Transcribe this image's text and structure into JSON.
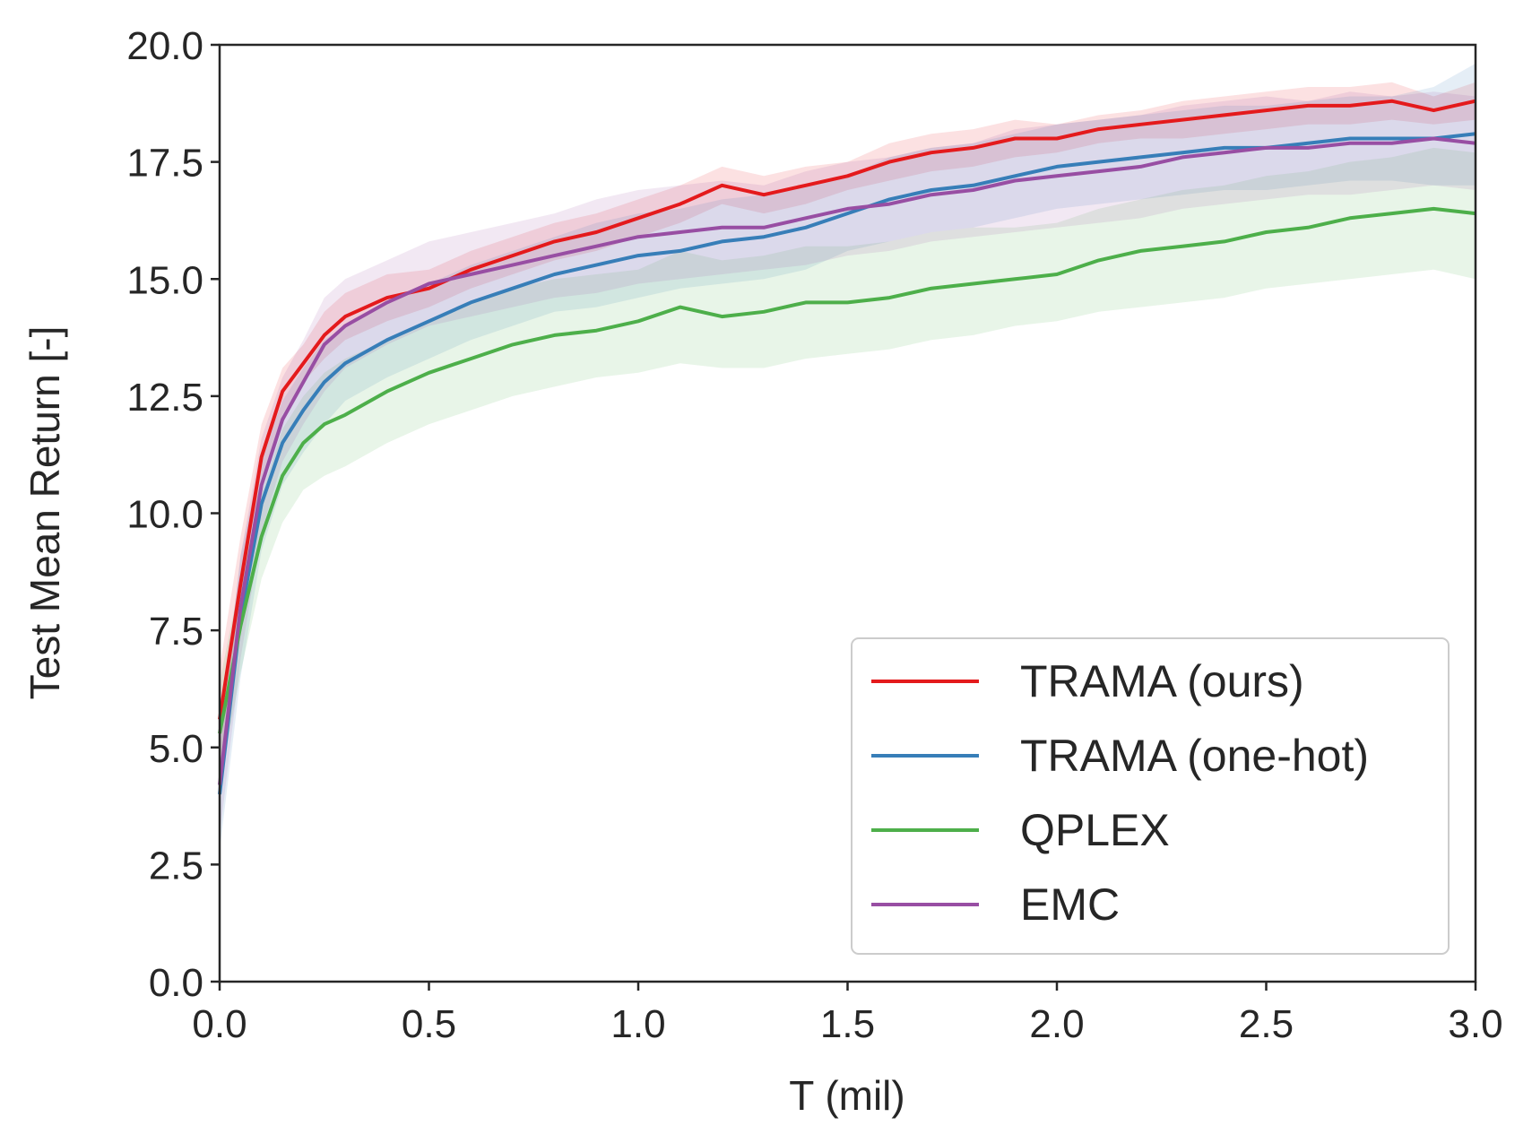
{
  "chart_data": {
    "type": "line",
    "title": "",
    "xlabel": "T (mil)",
    "ylabel": "Test Mean Return [-]",
    "xlim": [
      0,
      3.0
    ],
    "ylim": [
      0,
      20.0
    ],
    "xticks": [
      "0.0",
      "0.5",
      "1.0",
      "1.5",
      "2.0",
      "2.5",
      "3.0"
    ],
    "yticks": [
      "0.0",
      "2.5",
      "5.0",
      "7.5",
      "10.0",
      "12.5",
      "15.0",
      "17.5",
      "20.0"
    ],
    "grid": false,
    "legend_position": "lower-right",
    "series": [
      {
        "name": "TRAMA (ours)",
        "color": "#e41a1c",
        "x": [
          0,
          0.05,
          0.1,
          0.15,
          0.2,
          0.25,
          0.3,
          0.4,
          0.5,
          0.6,
          0.7,
          0.8,
          0.9,
          1.0,
          1.1,
          1.2,
          1.3,
          1.4,
          1.5,
          1.6,
          1.7,
          1.8,
          1.9,
          2.0,
          2.1,
          2.2,
          2.3,
          2.4,
          2.5,
          2.6,
          2.7,
          2.8,
          2.9,
          3.0
        ],
        "values": [
          5.6,
          8.5,
          11.2,
          12.6,
          13.2,
          13.8,
          14.2,
          14.6,
          14.8,
          15.2,
          15.5,
          15.8,
          16.0,
          16.3,
          16.6,
          17.0,
          16.8,
          17.0,
          17.2,
          17.5,
          17.7,
          17.8,
          18.0,
          18.0,
          18.2,
          18.3,
          18.4,
          18.5,
          18.6,
          18.7,
          18.7,
          18.8,
          18.6,
          18.8
        ],
        "band_low": [
          4.5,
          7.5,
          10.5,
          12.1,
          12.8,
          13.3,
          13.7,
          14.1,
          14.4,
          14.8,
          15.1,
          15.4,
          15.6,
          15.9,
          16.2,
          16.6,
          16.4,
          16.6,
          16.9,
          17.1,
          17.3,
          17.4,
          17.6,
          17.7,
          17.9,
          18.0,
          18.0,
          18.1,
          18.2,
          18.3,
          18.3,
          18.4,
          18.3,
          18.4
        ],
        "band_high": [
          6.7,
          9.5,
          11.9,
          13.1,
          13.6,
          14.3,
          14.7,
          15.1,
          15.2,
          15.6,
          15.9,
          16.2,
          16.4,
          16.7,
          17.0,
          17.4,
          17.2,
          17.4,
          17.5,
          17.9,
          18.1,
          18.2,
          18.4,
          18.3,
          18.5,
          18.6,
          18.8,
          18.9,
          19.0,
          19.1,
          19.1,
          19.2,
          18.9,
          19.2
        ]
      },
      {
        "name": "TRAMA (one-hot)",
        "color": "#377eb8",
        "x": [
          0,
          0.05,
          0.1,
          0.15,
          0.2,
          0.25,
          0.3,
          0.4,
          0.5,
          0.6,
          0.7,
          0.8,
          0.9,
          1.0,
          1.1,
          1.2,
          1.3,
          1.4,
          1.5,
          1.6,
          1.7,
          1.8,
          1.9,
          2.0,
          2.1,
          2.2,
          2.3,
          2.4,
          2.5,
          2.6,
          2.7,
          2.8,
          2.9,
          3.0
        ],
        "values": [
          4.0,
          7.8,
          10.2,
          11.5,
          12.2,
          12.8,
          13.2,
          13.7,
          14.1,
          14.5,
          14.8,
          15.1,
          15.3,
          15.5,
          15.6,
          15.8,
          15.9,
          16.1,
          16.4,
          16.7,
          16.9,
          17.0,
          17.2,
          17.4,
          17.5,
          17.6,
          17.7,
          17.8,
          17.8,
          17.9,
          18.0,
          18.0,
          18.0,
          18.1
        ],
        "band_low": [
          2.8,
          6.5,
          9.2,
          10.6,
          11.3,
          11.9,
          12.4,
          12.9,
          13.3,
          13.7,
          14.0,
          14.3,
          14.4,
          14.6,
          14.8,
          14.9,
          15.0,
          15.2,
          15.6,
          15.8,
          16.0,
          16.1,
          16.3,
          16.5,
          16.6,
          16.7,
          16.8,
          16.9,
          16.9,
          17.0,
          17.1,
          17.1,
          17.0,
          17.0
        ],
        "band_high": [
          5.2,
          9.1,
          11.2,
          12.4,
          13.1,
          13.7,
          14.0,
          14.5,
          14.9,
          15.3,
          15.6,
          15.9,
          16.2,
          16.4,
          16.5,
          16.7,
          16.8,
          17.0,
          17.2,
          17.6,
          17.8,
          17.9,
          18.1,
          18.3,
          18.4,
          18.5,
          18.6,
          18.7,
          18.7,
          18.8,
          18.9,
          18.9,
          19.1,
          19.6
        ]
      },
      {
        "name": "QPLEX",
        "color": "#4daf4a",
        "x": [
          0,
          0.05,
          0.1,
          0.15,
          0.2,
          0.25,
          0.3,
          0.4,
          0.5,
          0.6,
          0.7,
          0.8,
          0.9,
          1.0,
          1.1,
          1.2,
          1.3,
          1.4,
          1.5,
          1.6,
          1.7,
          1.8,
          1.9,
          2.0,
          2.1,
          2.2,
          2.3,
          2.4,
          2.5,
          2.6,
          2.7,
          2.8,
          2.9,
          3.0
        ],
        "values": [
          5.3,
          7.6,
          9.5,
          10.8,
          11.5,
          11.9,
          12.1,
          12.6,
          13.0,
          13.3,
          13.6,
          13.8,
          13.9,
          14.1,
          14.4,
          14.2,
          14.3,
          14.5,
          14.5,
          14.6,
          14.8,
          14.9,
          15.0,
          15.1,
          15.4,
          15.6,
          15.7,
          15.8,
          16.0,
          16.1,
          16.3,
          16.4,
          16.5,
          16.4
        ],
        "band_low": [
          4.2,
          6.6,
          8.6,
          9.8,
          10.5,
          10.8,
          11.0,
          11.5,
          11.9,
          12.2,
          12.5,
          12.7,
          12.9,
          13.0,
          13.2,
          13.1,
          13.1,
          13.3,
          13.4,
          13.5,
          13.7,
          13.8,
          14.0,
          14.1,
          14.3,
          14.4,
          14.5,
          14.6,
          14.8,
          14.9,
          15.0,
          15.1,
          15.2,
          15.0
        ],
        "band_high": [
          6.4,
          8.6,
          10.4,
          11.8,
          12.5,
          13.0,
          13.3,
          13.7,
          14.1,
          14.5,
          14.8,
          15.0,
          15.1,
          15.2,
          15.6,
          15.4,
          15.5,
          15.7,
          15.7,
          15.8,
          16.0,
          16.1,
          16.1,
          16.2,
          16.5,
          16.7,
          16.9,
          17.0,
          17.2,
          17.3,
          17.5,
          17.6,
          17.8,
          17.7
        ]
      },
      {
        "name": "EMC",
        "color": "#984ea3",
        "x": [
          0,
          0.05,
          0.1,
          0.15,
          0.2,
          0.25,
          0.3,
          0.4,
          0.5,
          0.6,
          0.7,
          0.8,
          0.9,
          1.0,
          1.1,
          1.2,
          1.3,
          1.4,
          1.5,
          1.6,
          1.7,
          1.8,
          1.9,
          2.0,
          2.1,
          2.2,
          2.3,
          2.4,
          2.5,
          2.6,
          2.7,
          2.8,
          2.9,
          3.0
        ],
        "values": [
          4.2,
          8.0,
          10.6,
          12.0,
          12.8,
          13.6,
          14.0,
          14.5,
          14.9,
          15.1,
          15.3,
          15.5,
          15.7,
          15.9,
          16.0,
          16.1,
          16.1,
          16.3,
          16.5,
          16.6,
          16.8,
          16.9,
          17.1,
          17.2,
          17.3,
          17.4,
          17.6,
          17.7,
          17.8,
          17.8,
          17.9,
          17.9,
          18.0,
          17.9
        ],
        "band_low": [
          3.1,
          6.9,
          9.6,
          11.1,
          11.9,
          12.6,
          13.1,
          13.6,
          14.0,
          14.2,
          14.4,
          14.6,
          14.7,
          14.9,
          15.0,
          15.1,
          15.2,
          15.3,
          15.5,
          15.6,
          15.8,
          15.9,
          16.0,
          16.1,
          16.2,
          16.3,
          16.5,
          16.6,
          16.7,
          16.8,
          16.8,
          16.9,
          17.0,
          16.9
        ],
        "band_high": [
          5.3,
          9.1,
          11.6,
          12.9,
          13.7,
          14.6,
          15.0,
          15.4,
          15.8,
          16.0,
          16.2,
          16.4,
          16.7,
          16.9,
          17.0,
          17.1,
          17.0,
          17.3,
          17.5,
          17.6,
          17.8,
          17.9,
          18.2,
          18.3,
          18.4,
          18.5,
          18.7,
          18.8,
          18.9,
          18.8,
          19.0,
          18.9,
          19.0,
          18.9
        ]
      }
    ]
  }
}
